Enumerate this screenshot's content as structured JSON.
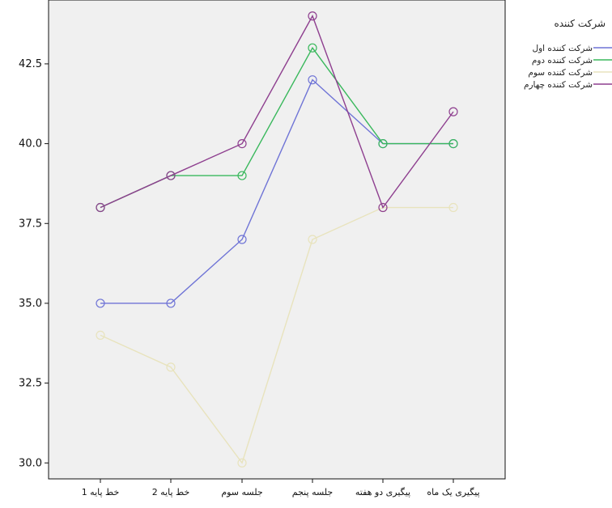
{
  "chart_data": {
    "type": "line",
    "title": "",
    "xlabel": "",
    "ylabel": "",
    "categories": [
      "خط پایه 1",
      "خط پایه 2",
      "جلسه سوم",
      "جلسه پنجم",
      "پیگیری دو هفته",
      "پیگیری یک ماه"
    ],
    "ylim": [
      29.5,
      44.5
    ],
    "yticks": [
      "30.0",
      "32.5",
      "35.0",
      "37.5",
      "40.0",
      "42.5"
    ],
    "grid": false,
    "legend_title": "شرکت کننده",
    "legend_placement": "right",
    "series": [
      {
        "name": "شرکت کننده اول",
        "color": "#6f74d6",
        "values": [
          35,
          35,
          37,
          42,
          40,
          40
        ]
      },
      {
        "name": "شرکت کننده دوم",
        "color": "#39b85c",
        "values": [
          38,
          39,
          39,
          43,
          40,
          40
        ]
      },
      {
        "name": "شرکت کننده سوم",
        "color": "#e8e3bd",
        "values": [
          34,
          33,
          30,
          37,
          38,
          38
        ]
      },
      {
        "name": "شرکت کننده چهارم",
        "color": "#8e3f8f",
        "values": [
          38,
          39,
          40,
          44,
          38,
          41
        ]
      }
    ]
  }
}
